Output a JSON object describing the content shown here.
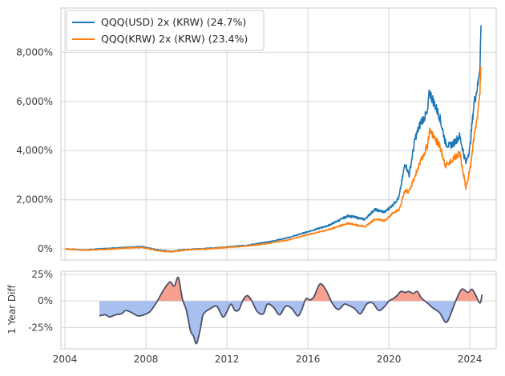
{
  "chart_data": [
    {
      "type": "line",
      "title": "",
      "xlabel": "",
      "ylabel": "",
      "xlim": [
        2003.8,
        2025.3
      ],
      "ylim": [
        -450,
        9800
      ],
      "yticks": [
        0,
        2000,
        4000,
        6000,
        8000
      ],
      "ytick_labels": [
        "0%",
        "2,000%",
        "4,000%",
        "6,000%",
        "8,000%"
      ],
      "grid": true,
      "legend_position": "top-left",
      "series": [
        {
          "name": "QQQ(USD) 2x (KRW) (24.7%)",
          "color": "#1f77b4",
          "x": [
            2004.0,
            2005.0,
            2006.0,
            2007.0,
            2007.8,
            2008.5,
            2009.2,
            2010.0,
            2011.0,
            2012.0,
            2013.0,
            2014.0,
            2015.0,
            2016.0,
            2017.0,
            2018.0,
            2018.8,
            2019.3,
            2019.8,
            2020.2,
            2020.5,
            2020.8,
            2021.0,
            2021.3,
            2021.6,
            2021.9,
            2022.0,
            2022.2,
            2022.5,
            2022.8,
            2023.0,
            2023.2,
            2023.5,
            2023.8,
            2024.0,
            2024.2,
            2024.4,
            2024.5,
            2024.55
          ],
          "y": [
            0,
            -40,
            20,
            60,
            100,
            -30,
            -100,
            -20,
            20,
            80,
            150,
            280,
            450,
            700,
            950,
            1350,
            1200,
            1600,
            1500,
            1800,
            2100,
            3500,
            3000,
            4500,
            5200,
            5500,
            6400,
            6000,
            5400,
            4300,
            4200,
            4300,
            4600,
            3500,
            4100,
            5900,
            6700,
            7500,
            9100
          ]
        },
        {
          "name": "QQQ(KRW) 2x (KRW) (23.4%)",
          "color": "#ff7f0e",
          "x": [
            2004.0,
            2005.0,
            2006.0,
            2007.0,
            2007.8,
            2008.5,
            2009.2,
            2010.0,
            2011.0,
            2012.0,
            2013.0,
            2014.0,
            2015.0,
            2016.0,
            2017.0,
            2018.0,
            2018.8,
            2019.3,
            2019.8,
            2020.2,
            2020.5,
            2020.8,
            2021.0,
            2021.3,
            2021.6,
            2021.9,
            2022.0,
            2022.2,
            2022.5,
            2022.8,
            2023.0,
            2023.2,
            2023.5,
            2023.8,
            2024.0,
            2024.2,
            2024.4,
            2024.5,
            2024.55
          ],
          "y": [
            0,
            -50,
            -20,
            40,
            60,
            -60,
            -120,
            -40,
            0,
            60,
            120,
            220,
            360,
            580,
            780,
            1050,
            900,
            1200,
            1150,
            1450,
            1600,
            2400,
            2300,
            3000,
            3600,
            4200,
            4800,
            4600,
            4200,
            3400,
            3500,
            3700,
            3900,
            2500,
            3200,
            4500,
            5600,
            6500,
            7400
          ]
        }
      ]
    },
    {
      "type": "area",
      "title": "",
      "xlabel": "",
      "ylabel": "1 Year Diff",
      "xlim": [
        2003.8,
        2025.3
      ],
      "ylim": [
        -45,
        28
      ],
      "yticks": [
        25,
        0,
        -25
      ],
      "ytick_labels": [
        "25%",
        "0%",
        "-25%"
      ],
      "xticks": [
        2004,
        2008,
        2012,
        2016,
        2020,
        2024
      ],
      "xtick_labels": [
        "2004",
        "2008",
        "2012",
        "2016",
        "2020",
        "2024"
      ],
      "grid": true,
      "positive_color": "#f8a090",
      "negative_color": "#a8c0f0",
      "line_color": "#4a5068",
      "series": [
        {
          "name": "1 Year Diff",
          "x": [
            2005.7,
            2006.0,
            2006.2,
            2006.5,
            2006.8,
            2007.0,
            2007.3,
            2007.6,
            2007.9,
            2008.2,
            2008.5,
            2008.8,
            2009.0,
            2009.2,
            2009.4,
            2009.6,
            2009.8,
            2010.0,
            2010.2,
            2010.35,
            2010.5,
            2010.7,
            2010.8,
            2010.95,
            2011.2,
            2011.5,
            2011.8,
            2012.0,
            2012.2,
            2012.4,
            2012.6,
            2012.8,
            2013.0,
            2013.2,
            2013.5,
            2013.8,
            2014.0,
            2014.3,
            2014.6,
            2014.9,
            2015.2,
            2015.5,
            2015.7,
            2015.9,
            2016.1,
            2016.3,
            2016.6,
            2016.9,
            2017.2,
            2017.5,
            2017.8,
            2018.0,
            2018.3,
            2018.6,
            2018.9,
            2019.2,
            2019.5,
            2019.8,
            2020.0,
            2020.2,
            2020.4,
            2020.6,
            2020.8,
            2021.0,
            2021.2,
            2021.4,
            2021.6,
            2021.9,
            2022.2,
            2022.5,
            2022.8,
            2023.0,
            2023.3,
            2023.6,
            2023.9,
            2024.1,
            2024.3,
            2024.5,
            2024.6
          ],
          "y": [
            -14,
            -13,
            -15,
            -13,
            -12,
            -9,
            -11,
            -14,
            -13,
            -10,
            -2,
            8,
            14,
            18,
            14,
            22,
            2,
            -9,
            -28,
            -33,
            -40,
            -25,
            -14,
            -10,
            -7,
            -5,
            -15,
            -10,
            -3,
            -9,
            -8,
            1,
            5,
            1,
            -10,
            -12,
            -3,
            -6,
            -13,
            -5,
            -7,
            -14,
            -8,
            2,
            1,
            4,
            16,
            10,
            -2,
            -8,
            -3,
            -4,
            -7,
            -12,
            -3,
            -2,
            -9,
            -5,
            0,
            2,
            5,
            9,
            8,
            9,
            7,
            9,
            3,
            -2,
            -7,
            -11,
            -20,
            -15,
            0,
            11,
            8,
            11,
            5,
            -2,
            6
          ]
        }
      ]
    }
  ]
}
